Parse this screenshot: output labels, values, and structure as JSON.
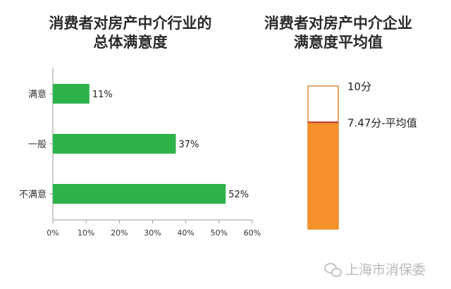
{
  "left_chart": {
    "title_line1": "消费者对房产中介行业的",
    "title_line2": "总体满意度"
  },
  "right_chart": {
    "title_line1": "消费者对房产中介企业",
    "title_line2": "满意度平均值"
  },
  "watermark": {
    "text": "上海市消保委",
    "icon": "wechat-icon"
  },
  "colors": {
    "bar": "#2db34a",
    "fill": "#f5902a",
    "outline": "#d98a3a",
    "avg_line": "#c0392b"
  },
  "chart_data": [
    {
      "type": "bar",
      "orientation": "horizontal",
      "categories": [
        "满意",
        "一般",
        "不满意"
      ],
      "values": [
        11,
        37,
        52
      ],
      "value_labels": [
        "11%",
        "37%",
        "52%"
      ],
      "xlim": [
        0,
        60
      ],
      "ticks": [
        0,
        10,
        20,
        30,
        40,
        50,
        60
      ],
      "tick_labels": [
        "0%",
        "10%",
        "20%",
        "30%",
        "40%",
        "50%",
        "60%"
      ]
    },
    {
      "type": "bar",
      "orientation": "vertical",
      "ylim": [
        0,
        10
      ],
      "max_value": 10,
      "max_label": "10分",
      "value": 7.47,
      "value_label": "7.47分-平均值"
    }
  ]
}
